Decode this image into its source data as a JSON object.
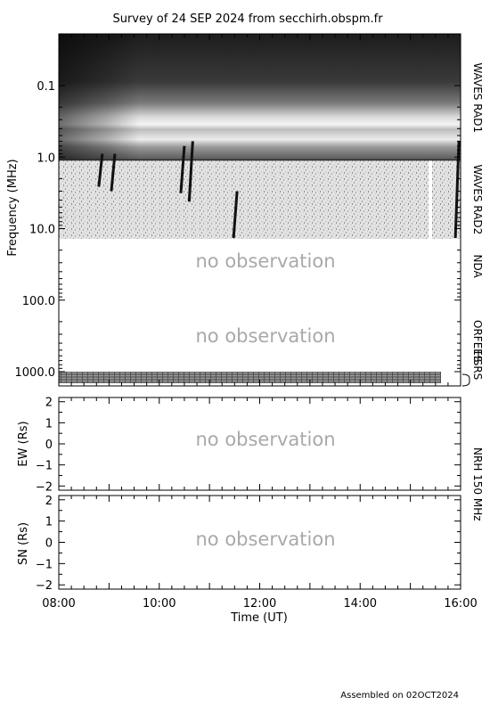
{
  "title": "Survey of 24 SEP 2024 from secchirh.obspm.fr",
  "footer": "Assembled on 02OCT2024",
  "no_observation_text": "no observation",
  "colors": {
    "frame": "#000000",
    "no_observation": "#a9a9a9",
    "background": "#ffffff"
  },
  "chart_data": [
    {
      "type": "heatmap",
      "name": "dynamic-spectrum",
      "ylabel": "Frequency (MHz)",
      "yscale": "log",
      "yreversed": true,
      "ylim": [
        0.02,
        1500
      ],
      "y_ticks": [
        0.1,
        1.0,
        10.0,
        100.0,
        1000.0
      ],
      "y_tick_labels": [
        "0.1",
        "1.0",
        "10.0",
        "100.0",
        "1000.0"
      ],
      "xlim": [
        "08:00",
        "16:00"
      ],
      "instruments": [
        {
          "label": "WAVES RAD1",
          "freq_range_mhz": [
            0.02,
            1.1
          ],
          "time_range": [
            "08:00",
            "16:00"
          ],
          "observed": true
        },
        {
          "label": "WAVES RAD2",
          "freq_range_mhz": [
            1.1,
            14
          ],
          "time_range": [
            "08:00",
            "16:00"
          ],
          "observed": true
        },
        {
          "label": "NDA",
          "freq_range_mhz": [
            14,
            80
          ],
          "observed": false
        },
        {
          "label": "ORFEES",
          "freq_range_mhz": [
            140,
            1000
          ],
          "observed": false
        },
        {
          "label": "HSRS",
          "freq_range_mhz": [
            1100,
            1500
          ],
          "time_range": [
            "08:00",
            "15:35"
          ],
          "observed": true
        }
      ],
      "radio_bursts": [
        {
          "time": "08:52",
          "f_start_mhz": 0.9,
          "f_end_mhz": 2.6
        },
        {
          "time": "09:07",
          "f_start_mhz": 0.9,
          "f_end_mhz": 3.0
        },
        {
          "time": "10:30",
          "f_start_mhz": 0.7,
          "f_end_mhz": 3.2
        },
        {
          "time": "10:40",
          "f_start_mhz": 0.6,
          "f_end_mhz": 4.2
        },
        {
          "time": "11:33",
          "f_start_mhz": 3.0,
          "f_end_mhz": 14.0
        },
        {
          "time": "15:58",
          "f_start_mhz": 0.6,
          "f_end_mhz": 14.0
        }
      ]
    },
    {
      "type": "line",
      "name": "nrh-ew",
      "ylabel": "EW (Rs)",
      "ylim": [
        -2.2,
        2.2
      ],
      "y_ticks": [
        -2,
        -1,
        0,
        1,
        2
      ],
      "xlim": [
        "08:00",
        "16:00"
      ],
      "instrument": "NRH 150 MHz",
      "observed": false
    },
    {
      "type": "line",
      "name": "nrh-sn",
      "ylabel": "SN (Rs)",
      "xlabel": "Time (UT)",
      "ylim": [
        -2.2,
        2.2
      ],
      "y_ticks": [
        -2,
        -1,
        0,
        1,
        2
      ],
      "xlim": [
        "08:00",
        "16:00"
      ],
      "x_ticks": [
        "08:00",
        "10:00",
        "12:00",
        "14:00",
        "16:00"
      ],
      "observed": false
    }
  ]
}
